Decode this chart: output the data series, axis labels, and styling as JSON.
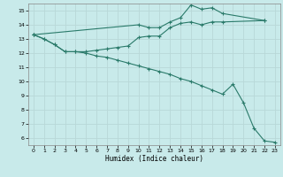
{
  "xlabel": "Humidex (Indice chaleur)",
  "bg_color": "#c8eaea",
  "grid_color": "#b8d8d8",
  "line_color": "#2a7a6a",
  "xlim": [
    -0.5,
    23.5
  ],
  "ylim": [
    5.5,
    15.5
  ],
  "xticks": [
    0,
    1,
    2,
    3,
    4,
    5,
    6,
    7,
    8,
    9,
    10,
    11,
    12,
    13,
    14,
    15,
    16,
    17,
    18,
    19,
    20,
    21,
    22,
    23
  ],
  "yticks": [
    6,
    7,
    8,
    9,
    10,
    11,
    12,
    13,
    14,
    15
  ],
  "line1_x": [
    0,
    1,
    2,
    3,
    4,
    5,
    6,
    7,
    8,
    9,
    10,
    11,
    12,
    13,
    14,
    15,
    16,
    17,
    18,
    22
  ],
  "line1_y": [
    13.3,
    13.0,
    12.6,
    12.1,
    12.1,
    12.1,
    12.2,
    12.3,
    12.4,
    12.5,
    13.1,
    13.2,
    13.2,
    13.8,
    14.1,
    14.2,
    14.0,
    14.2,
    14.2,
    14.3
  ],
  "line2_x": [
    0,
    10,
    11,
    12,
    13,
    14,
    15,
    16,
    17,
    18,
    22
  ],
  "line2_y": [
    13.3,
    14.0,
    13.8,
    13.8,
    14.2,
    14.5,
    15.4,
    15.1,
    15.2,
    14.8,
    14.3
  ],
  "line3_x": [
    0,
    1,
    2,
    3,
    4,
    5,
    6,
    7,
    8,
    9,
    10,
    11,
    12,
    13,
    14,
    15,
    16,
    17,
    18,
    19,
    20,
    21,
    22,
    23
  ],
  "line3_y": [
    13.3,
    13.0,
    12.6,
    12.1,
    12.1,
    12.0,
    11.8,
    11.7,
    11.5,
    11.3,
    11.1,
    10.9,
    10.7,
    10.5,
    10.2,
    10.0,
    9.7,
    9.4,
    9.1,
    9.8,
    8.5,
    6.7,
    5.8,
    5.7
  ]
}
